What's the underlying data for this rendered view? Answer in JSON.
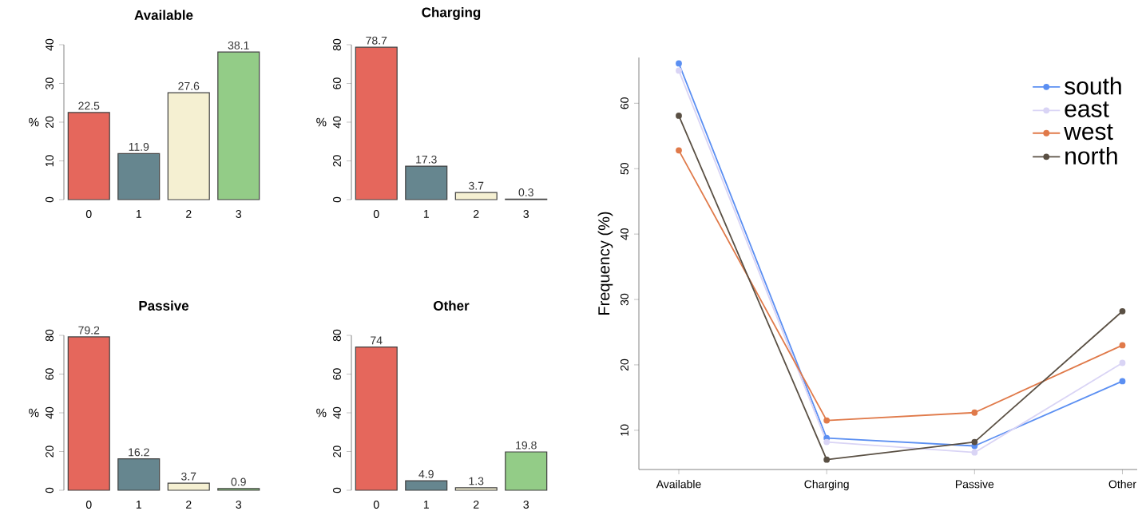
{
  "chart_data": [
    {
      "type": "bar",
      "title": "Available",
      "ylabel": "%",
      "categories": [
        "0",
        "1",
        "2",
        "3"
      ],
      "values": [
        22.5,
        11.9,
        27.6,
        38.1
      ],
      "colors": [
        "#e5675c",
        "#66868f",
        "#f5f0d2",
        "#93cc87"
      ],
      "ylim": [
        0,
        40
      ],
      "yticks": [
        0,
        10,
        20,
        30,
        40
      ],
      "data_labels": true
    },
    {
      "type": "bar",
      "title": "Charging",
      "ylabel": "%",
      "categories": [
        "0",
        "1",
        "2",
        "3"
      ],
      "values": [
        78.7,
        17.3,
        3.7,
        0.3
      ],
      "colors": [
        "#e5675c",
        "#66868f",
        "#f5f0d2",
        "#93cc87"
      ],
      "ylim": [
        0,
        80
      ],
      "yticks": [
        0,
        20,
        40,
        60,
        80
      ],
      "data_labels": true
    },
    {
      "type": "bar",
      "title": "Passive",
      "ylabel": "%",
      "categories": [
        "0",
        "1",
        "2",
        "3"
      ],
      "values": [
        79.2,
        16.2,
        3.7,
        0.9
      ],
      "colors": [
        "#e5675c",
        "#66868f",
        "#f5f0d2",
        "#93cc87"
      ],
      "ylim": [
        0,
        80
      ],
      "yticks": [
        0,
        20,
        40,
        60,
        80
      ],
      "data_labels": true
    },
    {
      "type": "bar",
      "title": "Other",
      "ylabel": "%",
      "categories": [
        "0",
        "1",
        "2",
        "3"
      ],
      "values": [
        74,
        4.9,
        1.3,
        19.8
      ],
      "colors": [
        "#e5675c",
        "#66868f",
        "#f5f0d2",
        "#93cc87"
      ],
      "ylim": [
        0,
        80
      ],
      "yticks": [
        0,
        20,
        40,
        60,
        80
      ],
      "data_labels": true
    },
    {
      "type": "line",
      "ylabel": "Frequency (%)",
      "categories": [
        "Available",
        "Charging",
        "Passive",
        "Other"
      ],
      "ylim": [
        4,
        67
      ],
      "yticks": [
        10,
        20,
        30,
        40,
        50,
        60
      ],
      "legend": "top right",
      "marker": "circle",
      "series": [
        {
          "name": "south",
          "color": "#5b8ff2",
          "values": [
            66.1,
            8.8,
            7.6,
            17.5
          ]
        },
        {
          "name": "east",
          "color": "#d9d4f5",
          "values": [
            65.0,
            8.2,
            6.6,
            20.3
          ]
        },
        {
          "name": "west",
          "color": "#e07a4a",
          "values": [
            52.8,
            11.5,
            12.7,
            23.0
          ]
        },
        {
          "name": "north",
          "color": "#5a5044",
          "values": [
            58.1,
            5.5,
            8.2,
            28.2
          ]
        }
      ]
    }
  ]
}
